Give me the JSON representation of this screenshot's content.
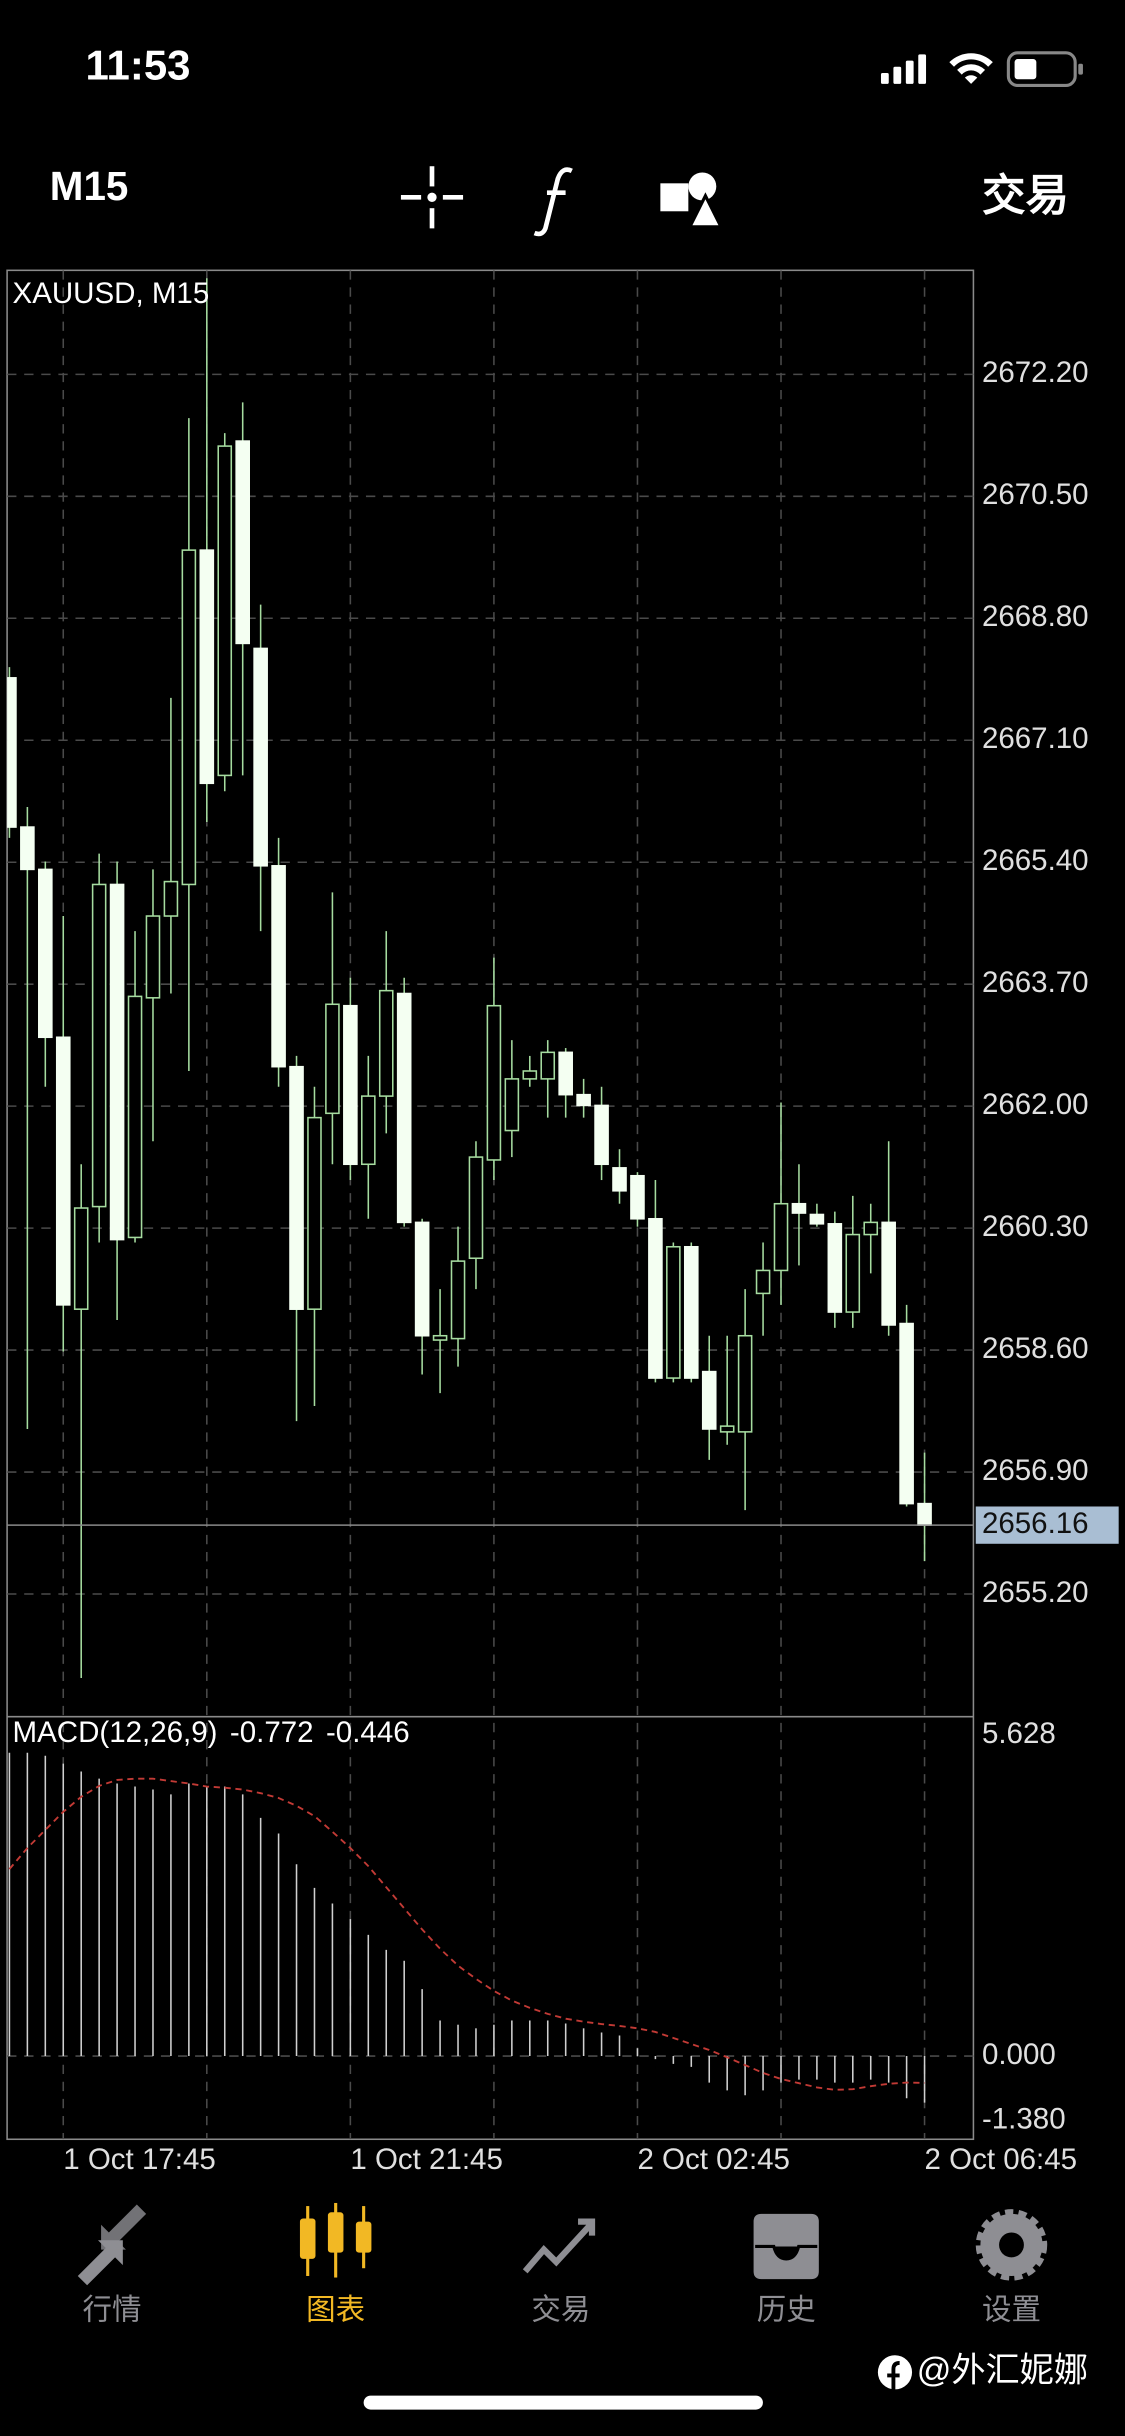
{
  "status_bar": {
    "time": "11:53"
  },
  "toolbar": {
    "timeframe": "M15",
    "trade": "交易"
  },
  "chart_data": {
    "type": "candlestick",
    "title": "XAUUSD, M15",
    "categories": [
      null,
      null,
      null,
      "1 Oct 17:45",
      null,
      null,
      null,
      null,
      null,
      null,
      null,
      null,
      null,
      null,
      null,
      null,
      null,
      null,
      null,
      "1 Oct 21:45",
      null,
      null,
      null,
      null,
      null,
      null,
      null,
      null,
      null,
      null,
      null,
      null,
      null,
      null,
      null,
      "2 Oct 02:45",
      null,
      null,
      null,
      null,
      null,
      null,
      null,
      null,
      null,
      null,
      null,
      null,
      null,
      null,
      null,
      "2 Oct 06:45"
    ],
    "open": [
      2667.97,
      2665.89,
      2665.3,
      2662.96,
      2659.17,
      2660.6,
      2665.09,
      2660.17,
      2663.51,
      2664.65,
      2665.09,
      2669.75,
      2666.61,
      2671.27,
      2668.38,
      2665.35,
      2662.55,
      2659.17,
      2661.9,
      2663.4,
      2661.19,
      2662.14,
      2663.57,
      2660.38,
      2658.74,
      2658.76,
      2659.88,
      2661.25,
      2661.66,
      2662.38,
      2662.38,
      2662.75,
      2662.16,
      2662.01,
      2661.14,
      2661.03,
      2660.43,
      2658.21,
      2660.04,
      2658.3,
      2657.46,
      2657.46,
      2659.39,
      2659.71,
      2660.64,
      2660.49,
      2660.36,
      2659.13,
      2660.21,
      2660.38,
      2658.97,
      2656.46
    ],
    "high": [
      2668.12,
      2666.17,
      2665.41,
      2664.65,
      2661.19,
      2665.52,
      2665.41,
      2664.44,
      2665.3,
      2667.69,
      2671.59,
      2673.54,
      2671.38,
      2671.81,
      2668.99,
      2665.74,
      2662.7,
      2662.27,
      2664.98,
      2663.79,
      2662.7,
      2664.44,
      2663.79,
      2660.43,
      2659.45,
      2660.32,
      2661.51,
      2664.07,
      2662.92,
      2662.7,
      2662.92,
      2662.81,
      2662.38,
      2662.27,
      2661.4,
      2661.08,
      2660.97,
      2660.1,
      2660.1,
      2658.8,
      2658.8,
      2659.45,
      2660.1,
      2662.05,
      2661.19,
      2660.64,
      2660.53,
      2660.75,
      2660.64,
      2661.51,
      2659.23,
      2657.17
    ],
    "low": [
      2665.74,
      2657.5,
      2662.27,
      2658.58,
      2654.03,
      2660.1,
      2659.02,
      2660.1,
      2661.51,
      2663.57,
      2662.49,
      2665.96,
      2666.39,
      2666.61,
      2664.44,
      2662.27,
      2657.61,
      2657.82,
      2661.19,
      2660.97,
      2660.43,
      2661.62,
      2660.32,
      2658.26,
      2658.0,
      2658.37,
      2659.45,
      2660.97,
      2661.29,
      2662.27,
      2661.84,
      2661.84,
      2661.84,
      2660.97,
      2660.64,
      2660.32,
      2658.15,
      2658.15,
      2658.15,
      2657.07,
      2657.28,
      2656.37,
      2658.8,
      2659.23,
      2659.78,
      2660.32,
      2658.91,
      2658.91,
      2659.67,
      2658.8,
      2656.42,
      2655.66
    ],
    "close": [
      2665.89,
      2665.3,
      2662.96,
      2659.23,
      2660.58,
      2665.09,
      2660.14,
      2663.53,
      2664.65,
      2665.13,
      2669.75,
      2666.5,
      2671.2,
      2668.45,
      2665.35,
      2662.55,
      2659.17,
      2661.84,
      2663.42,
      2661.19,
      2662.14,
      2663.61,
      2660.38,
      2658.8,
      2658.8,
      2659.84,
      2661.29,
      2663.4,
      2662.38,
      2662.49,
      2662.75,
      2662.16,
      2662.01,
      2661.19,
      2660.82,
      2660.43,
      2658.21,
      2660.04,
      2658.21,
      2657.5,
      2657.54,
      2658.8,
      2659.71,
      2660.64,
      2660.51,
      2660.36,
      2659.13,
      2660.21,
      2660.38,
      2658.95,
      2656.46,
      2656.16
    ],
    "ylim": [
      2653.49,
      2673.65
    ],
    "yticks": [
      {
        "value": 2672.2,
        "label": "2672.20"
      },
      {
        "value": 2670.5,
        "label": "2670.50"
      },
      {
        "value": 2668.8,
        "label": "2668.80"
      },
      {
        "value": 2667.1,
        "label": "2667.10"
      },
      {
        "value": 2665.4,
        "label": "2665.40"
      },
      {
        "value": 2663.7,
        "label": "2663.70"
      },
      {
        "value": 2662,
        "label": "2662.00"
      },
      {
        "value": 2660.3,
        "label": "2660.30"
      },
      {
        "value": 2658.6,
        "label": "2658.60"
      },
      {
        "value": 2656.9,
        "label": "2656.90"
      },
      {
        "value": 2655.2,
        "label": "2655.20"
      }
    ],
    "last_price": 2656.16,
    "grid": true,
    "up_color": "#a6dca0",
    "down_color": "#f4fff2",
    "macd": {
      "name": "MACD(12,26,9)",
      "values": [
        5.03,
        5.03,
        4.98,
        4.85,
        4.72,
        4.6,
        4.52,
        4.47,
        4.42,
        4.34,
        4.52,
        4.47,
        4.47,
        4.34,
        3.95,
        3.69,
        3.18,
        2.79,
        2.53,
        2.27,
        2.01,
        1.76,
        1.58,
        1.11,
        0.59,
        0.52,
        0.46,
        0.52,
        0.59,
        0.59,
        0.59,
        0.54,
        0.46,
        0.39,
        0.34,
        0.13,
        -0.05,
        -0.13,
        -0.18,
        -0.44,
        -0.57,
        -0.65,
        -0.57,
        -0.44,
        -0.39,
        -0.39,
        -0.44,
        -0.44,
        -0.39,
        -0.44,
        -0.7,
        -0.772
      ],
      "signal": [
        3.1,
        3.45,
        3.75,
        4.05,
        4.3,
        4.48,
        4.58,
        4.6,
        4.6,
        4.56,
        4.52,
        4.47,
        4.45,
        4.42,
        4.36,
        4.28,
        4.15,
        3.98,
        3.72,
        3.45,
        3.15,
        2.8,
        2.45,
        2.1,
        1.78,
        1.5,
        1.28,
        1.08,
        0.92,
        0.8,
        0.7,
        0.62,
        0.57,
        0.53,
        0.5,
        0.46,
        0.4,
        0.3,
        0.2,
        0.1,
        -0.02,
        -0.15,
        -0.28,
        -0.38,
        -0.45,
        -0.52,
        -0.56,
        -0.55,
        -0.5,
        -0.46,
        -0.44,
        -0.446
      ],
      "ylim": [
        -1.38,
        5.628
      ],
      "yticks": [
        5.628,
        {
          "value": 0,
          "label": "0.000"
        },
        {
          "value": -1.38,
          "label": "-1.380"
        }
      ],
      "color": "#d0d0d0",
      "signal_color": "#c23a35"
    }
  },
  "tab_bar": {
    "items": [
      "行情",
      "图表",
      "交易",
      "历史",
      "设置"
    ],
    "active": 1
  },
  "watermark": "@外汇妮娜"
}
